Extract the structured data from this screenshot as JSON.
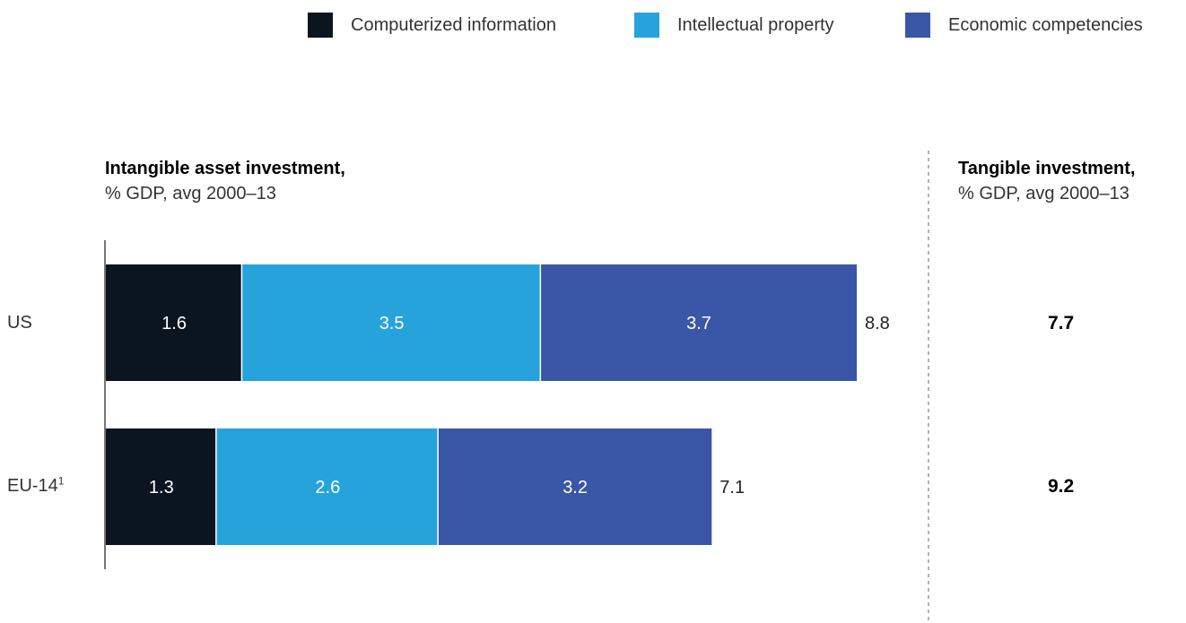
{
  "legend": [
    {
      "label": "Computerized information",
      "color": "#0b1520"
    },
    {
      "label": "Intellectual property",
      "color": "#27a3dc"
    },
    {
      "label": "Economic competencies",
      "color": "#3a56a6"
    }
  ],
  "intangible_title": {
    "bold": "Intangible asset investment,",
    "sub": "% GDP, avg 2000–13"
  },
  "tangible_title": {
    "bold": "Tangible investment,",
    "sub": "% GDP, avg 2000–13"
  },
  "rows": [
    {
      "label": "US",
      "sup": "",
      "tangible": "7.7"
    },
    {
      "label": "EU-14",
      "sup": "1",
      "tangible": "9.2"
    }
  ],
  "chart_data": {
    "type": "bar",
    "orientation": "horizontal",
    "stacked": true,
    "categories": [
      "US",
      "EU-14"
    ],
    "series": [
      {
        "name": "Computerized information",
        "values": [
          1.6,
          1.3
        ],
        "color": "#0b1520",
        "label_color": "#ffffff"
      },
      {
        "name": "Intellectual property",
        "values": [
          3.5,
          2.6
        ],
        "color": "#27a3dc",
        "label_color": "#ffffff"
      },
      {
        "name": "Economic competencies",
        "values": [
          3.7,
          3.2
        ],
        "color": "#3a56a6",
        "label_color": "#ffffff"
      }
    ],
    "totals": [
      8.8,
      7.1
    ],
    "tangible": [
      7.7,
      9.2
    ],
    "xlim": [
      0,
      8.8
    ],
    "grid": false,
    "legend_position": "top-right"
  }
}
